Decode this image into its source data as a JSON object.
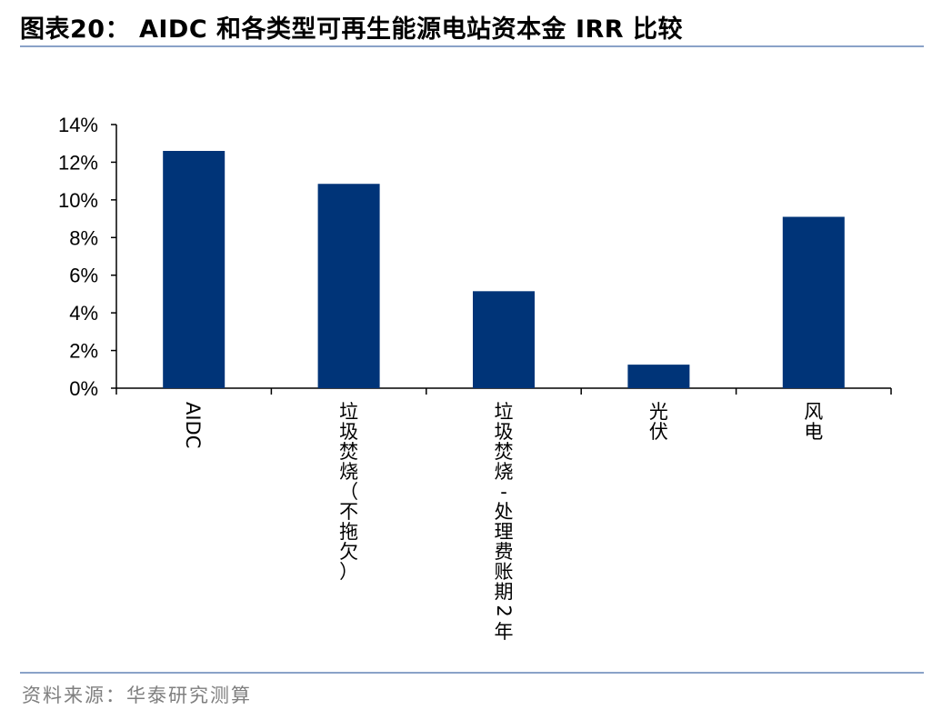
{
  "header": {
    "title": "图表20：  AIDC 和各类型可再生能源电站资本金 IRR 比较"
  },
  "footer": {
    "source": "资料来源：华泰研究测算"
  },
  "chart_data": {
    "type": "bar",
    "categories": [
      "AIDC",
      "垃圾焚烧（不拖欠）",
      "垃圾焚烧-处理费账期2年",
      "光伏",
      "风电"
    ],
    "values": [
      12.6,
      10.85,
      5.15,
      1.25,
      9.1
    ],
    "ylim": [
      0,
      14
    ],
    "yticks": [
      "0%",
      "2%",
      "4%",
      "6%",
      "8%",
      "10%",
      "12%",
      "14%"
    ],
    "bar_color": "#003478",
    "grid": false
  }
}
